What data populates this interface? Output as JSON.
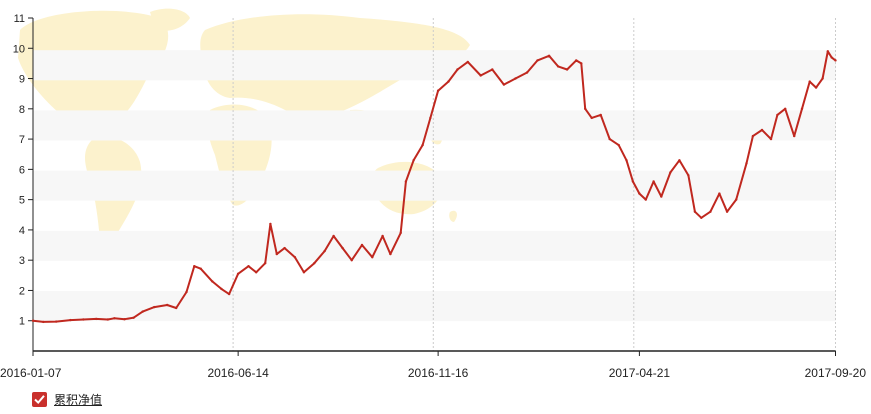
{
  "chart_data": {
    "type": "line",
    "title": "",
    "xlabel": "",
    "ylabel": "",
    "ylim": [
      0,
      11
    ],
    "y_ticks": [
      "1",
      "2",
      "3",
      "4",
      "5",
      "6",
      "7",
      "8",
      "9",
      "10",
      "11"
    ],
    "x_ticks": [
      "2016-01-07",
      "2016-06-14",
      "2016-11-16",
      "2017-04-21",
      "2017-09-20"
    ],
    "grid": "alternating horizontal bands with dashed vertical gridlines",
    "legend_position": "bottom-left",
    "background": "world map watermark",
    "series": [
      {
        "name": "累积净值",
        "color": "#c0281f",
        "points": [
          [
            "2016-01-07",
            1.0
          ],
          [
            "2016-01-15",
            0.96
          ],
          [
            "2016-01-25",
            0.97
          ],
          [
            "2016-02-05",
            1.02
          ],
          [
            "2016-02-15",
            1.04
          ],
          [
            "2016-02-25",
            1.06
          ],
          [
            "2016-03-05",
            1.04
          ],
          [
            "2016-03-10",
            1.08
          ],
          [
            "2016-03-18",
            1.05
          ],
          [
            "2016-03-25",
            1.1
          ],
          [
            "2016-04-01",
            1.3
          ],
          [
            "2016-04-10",
            1.45
          ],
          [
            "2016-04-20",
            1.52
          ],
          [
            "2016-04-27",
            1.42
          ],
          [
            "2016-05-05",
            1.95
          ],
          [
            "2016-05-11",
            2.8
          ],
          [
            "2016-05-16",
            2.72
          ],
          [
            "2016-05-25",
            2.3
          ],
          [
            "2016-06-01",
            2.05
          ],
          [
            "2016-06-07",
            1.88
          ],
          [
            "2016-06-14",
            2.55
          ],
          [
            "2016-06-22",
            2.8
          ],
          [
            "2016-06-28",
            2.6
          ],
          [
            "2016-07-05",
            2.9
          ],
          [
            "2016-07-09",
            4.2
          ],
          [
            "2016-07-14",
            3.2
          ],
          [
            "2016-07-20",
            3.4
          ],
          [
            "2016-07-28",
            3.1
          ],
          [
            "2016-08-04",
            2.6
          ],
          [
            "2016-08-12",
            2.9
          ],
          [
            "2016-08-20",
            3.3
          ],
          [
            "2016-08-27",
            3.8
          ],
          [
            "2016-09-03",
            3.4
          ],
          [
            "2016-09-10",
            3.0
          ],
          [
            "2016-09-18",
            3.5
          ],
          [
            "2016-09-26",
            3.1
          ],
          [
            "2016-10-04",
            3.8
          ],
          [
            "2016-10-10",
            3.2
          ],
          [
            "2016-10-18",
            3.9
          ],
          [
            "2016-10-22",
            5.6
          ],
          [
            "2016-10-28",
            6.3
          ],
          [
            "2016-11-04",
            6.8
          ],
          [
            "2016-11-10",
            7.7
          ],
          [
            "2016-11-16",
            8.6
          ],
          [
            "2016-11-24",
            8.9
          ],
          [
            "2016-12-01",
            9.3
          ],
          [
            "2016-12-09",
            9.55
          ],
          [
            "2016-12-19",
            9.1
          ],
          [
            "2016-12-28",
            9.3
          ],
          [
            "2017-01-06",
            8.8
          ],
          [
            "2017-01-15",
            9.0
          ],
          [
            "2017-01-24",
            9.2
          ],
          [
            "2017-02-01",
            9.6
          ],
          [
            "2017-02-10",
            9.75
          ],
          [
            "2017-02-17",
            9.4
          ],
          [
            "2017-02-24",
            9.3
          ],
          [
            "2017-03-03",
            9.6
          ],
          [
            "2017-03-07",
            9.5
          ],
          [
            "2017-03-10",
            8.0
          ],
          [
            "2017-03-15",
            7.7
          ],
          [
            "2017-03-22",
            7.8
          ],
          [
            "2017-03-29",
            7.0
          ],
          [
            "2017-04-05",
            6.8
          ],
          [
            "2017-04-11",
            6.3
          ],
          [
            "2017-04-16",
            5.6
          ],
          [
            "2017-04-21",
            5.2
          ],
          [
            "2017-04-26",
            5.0
          ],
          [
            "2017-05-02",
            5.6
          ],
          [
            "2017-05-08",
            5.1
          ],
          [
            "2017-05-15",
            5.9
          ],
          [
            "2017-05-22",
            6.3
          ],
          [
            "2017-05-29",
            5.8
          ],
          [
            "2017-06-03",
            4.6
          ],
          [
            "2017-06-08",
            4.4
          ],
          [
            "2017-06-15",
            4.6
          ],
          [
            "2017-06-22",
            5.2
          ],
          [
            "2017-06-28",
            4.6
          ],
          [
            "2017-07-05",
            5.0
          ],
          [
            "2017-07-13",
            6.2
          ],
          [
            "2017-07-18",
            7.1
          ],
          [
            "2017-07-25",
            7.3
          ],
          [
            "2017-08-01",
            7.0
          ],
          [
            "2017-08-06",
            7.8
          ],
          [
            "2017-08-12",
            8.0
          ],
          [
            "2017-08-19",
            7.1
          ],
          [
            "2017-08-25",
            8.0
          ],
          [
            "2017-08-31",
            8.9
          ],
          [
            "2017-09-05",
            8.7
          ],
          [
            "2017-09-10",
            9.0
          ],
          [
            "2017-09-14",
            9.9
          ],
          [
            "2017-09-17",
            9.7
          ],
          [
            "2017-09-20",
            9.6
          ]
        ]
      }
    ]
  },
  "legend": {
    "label": "累积净值",
    "checked": true
  }
}
